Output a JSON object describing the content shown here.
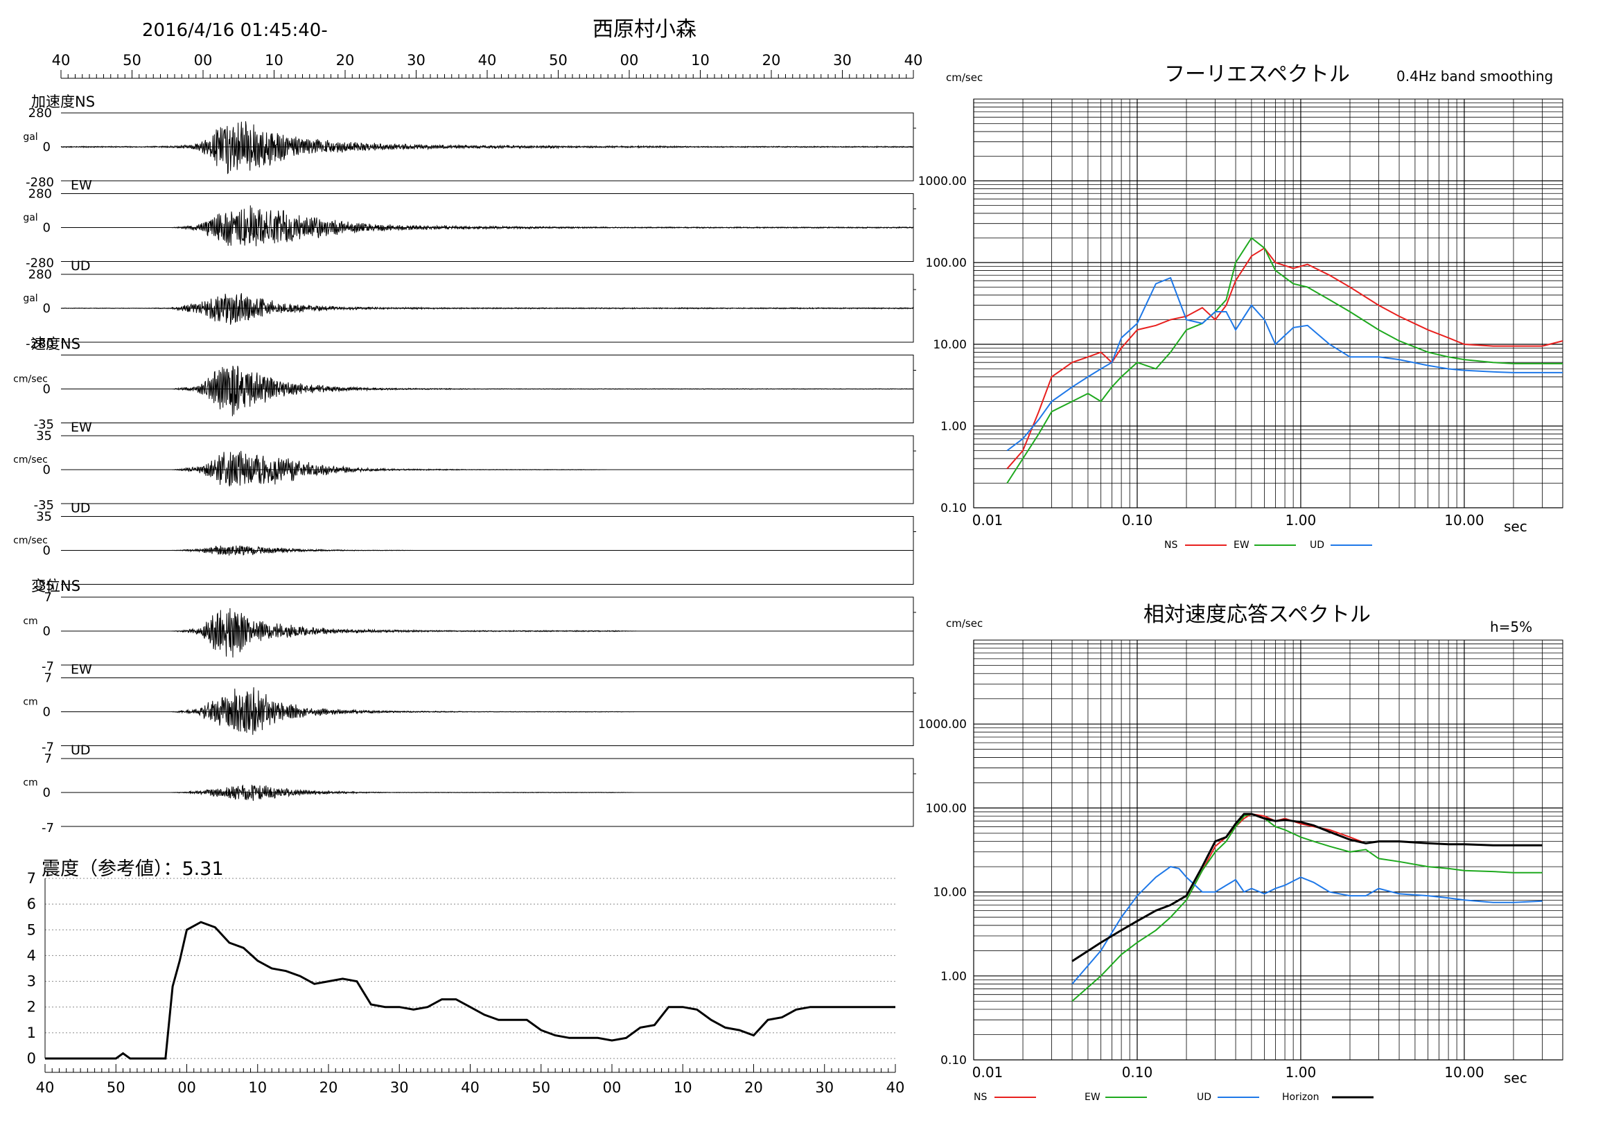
{
  "header": {
    "datetime": "2016/4/16 01:45:40-",
    "station": "西原村小森"
  },
  "waveforms": {
    "time_ticks": [
      "40",
      "50",
      "00",
      "10",
      "20",
      "30",
      "40",
      "50",
      "00",
      "10",
      "20",
      "30",
      "40"
    ],
    "panels": [
      {
        "group_label": "加速度NS",
        "comp": "",
        "unit": "gal",
        "top": "280",
        "mid": "0",
        "bottom": "-280",
        "env": [
          0.02,
          0.02,
          0.02,
          0.02,
          0.03,
          0.1,
          0.9,
          0.8,
          0.5,
          0.3,
          0.2,
          0.15,
          0.1,
          0.08,
          0.06,
          0.05,
          0.05,
          0.04,
          0.04,
          0.03,
          0.03,
          0.03,
          0.03,
          0.02,
          0.02,
          0.02,
          0.02,
          0.02,
          0.02,
          0.02,
          0.02,
          0.02
        ]
      },
      {
        "group_label": "",
        "comp": "EW",
        "unit": "gal",
        "top": "280",
        "mid": "0",
        "bottom": "-280",
        "env": [
          0.0,
          0.0,
          0.0,
          0.0,
          0.0,
          0.1,
          0.6,
          0.75,
          0.6,
          0.4,
          0.25,
          0.15,
          0.1,
          0.08,
          0.06,
          0.05,
          0.04,
          0.04,
          0.03,
          0.03,
          0.02,
          0.02,
          0.02,
          0.02,
          0.02,
          0.02,
          0.02,
          0.02,
          0.02,
          0.02,
          0.02,
          0.02
        ]
      },
      {
        "group_label": "",
        "comp": "UD",
        "unit": "gal",
        "top": "280",
        "mid": "0",
        "bottom": "-280",
        "env": [
          0.01,
          0.01,
          0.01,
          0.01,
          0.02,
          0.2,
          0.6,
          0.4,
          0.2,
          0.1,
          0.06,
          0.04,
          0.03,
          0.03,
          0.02,
          0.02,
          0.02,
          0.02,
          0.02,
          0.02,
          0.02,
          0.02,
          0.02,
          0.02,
          0.02,
          0.02,
          0.02,
          0.02,
          0.02,
          0.02,
          0.02,
          0.02
        ]
      },
      {
        "group_label": "速度NS",
        "comp": "",
        "unit": "cm/sec",
        "top": "",
        "mid": "0",
        "bottom": "-35",
        "env": [
          0.0,
          0.0,
          0.0,
          0.0,
          0.0,
          0.1,
          0.95,
          0.6,
          0.3,
          0.15,
          0.08,
          0.05,
          0.03,
          0.02,
          0.02,
          0.01,
          0.01,
          0.01,
          0.01,
          0.01,
          0.01,
          0.01,
          0.01,
          0.01,
          0.01,
          0.01,
          0.01,
          0.01,
          0.01,
          0.01,
          0.01,
          0.01
        ]
      },
      {
        "group_label": "",
        "comp": "EW",
        "unit": "cm/sec",
        "top": "35",
        "mid": "0",
        "bottom": "-35",
        "env": [
          0.0,
          0.0,
          0.0,
          0.0,
          0.0,
          0.1,
          0.6,
          0.6,
          0.45,
          0.25,
          0.12,
          0.06,
          0.03,
          0.02,
          0.02,
          0.01,
          0.01,
          0.01,
          0.01,
          0.01,
          0.0,
          0.0,
          0.0,
          0.0,
          0.0,
          0.0,
          0.0,
          0.0,
          0.0,
          0.0,
          0.0,
          0.0
        ]
      },
      {
        "group_label": "",
        "comp": "UD",
        "unit": "cm/sec",
        "top": "35",
        "mid": "0",
        "bottom": "-35",
        "env": [
          0.0,
          0.0,
          0.0,
          0.0,
          0.0,
          0.05,
          0.2,
          0.15,
          0.08,
          0.04,
          0.02,
          0.01,
          0.01,
          0.0,
          0.0,
          0.0,
          0.0,
          0.0,
          0.0,
          0.0,
          0.0,
          0.0,
          0.0,
          0.0,
          0.0,
          0.0,
          0.0,
          0.0,
          0.0,
          0.0,
          0.0,
          0.0
        ]
      },
      {
        "group_label": "変位NS",
        "comp": "",
        "unit": "cm",
        "top": "7",
        "mid": "0",
        "bottom": "-7",
        "env": [
          0.0,
          0.0,
          0.0,
          0.0,
          0.0,
          0.1,
          1.0,
          0.4,
          0.25,
          0.15,
          0.08,
          0.05,
          0.04,
          0.03,
          0.02,
          0.02,
          0.02,
          0.02,
          0.02,
          0.02,
          0.02,
          0.0,
          0.0,
          0.0,
          0.0,
          0.0,
          0.0,
          0.0,
          0.0,
          0.0,
          0.0,
          0.0
        ]
      },
      {
        "group_label": "",
        "comp": "EW",
        "unit": "cm",
        "top": "7",
        "mid": "0",
        "bottom": "-7",
        "env": [
          0.0,
          0.0,
          0.0,
          0.0,
          0.0,
          0.1,
          0.7,
          0.8,
          0.35,
          0.15,
          0.08,
          0.05,
          0.03,
          0.02,
          0.02,
          0.01,
          0.01,
          0.01,
          0.01,
          0.01,
          0.01,
          0.0,
          0.0,
          0.0,
          0.0,
          0.0,
          0.0,
          0.0,
          0.0,
          0.0,
          0.0,
          0.0
        ]
      },
      {
        "group_label": "",
        "comp": "UD",
        "unit": "cm",
        "top": "7",
        "mid": "0",
        "bottom": "-7",
        "env": [
          0.0,
          0.0,
          0.0,
          0.0,
          0.0,
          0.05,
          0.2,
          0.3,
          0.15,
          0.08,
          0.04,
          0.02,
          0.01,
          0.01,
          0.01,
          0.01,
          0.01,
          0.01,
          0.01,
          0.01,
          0.01,
          0.0,
          0.0,
          0.0,
          0.0,
          0.0,
          0.0,
          0.0,
          0.0,
          0.0,
          0.0,
          0.0
        ]
      }
    ]
  },
  "intensity": {
    "title": "震度（参考値）：5.31",
    "y_ticks": [
      "0",
      "1",
      "2",
      "3",
      "4",
      "5",
      "6",
      "7"
    ],
    "x_ticks": [
      "40",
      "50",
      "00",
      "10",
      "20",
      "30",
      "40",
      "50",
      "00",
      "10",
      "20",
      "30",
      "40"
    ],
    "chart_data": {
      "type": "line",
      "x_seconds": [
        0,
        10,
        11,
        12,
        17,
        18,
        19,
        20,
        22,
        24,
        26,
        28,
        30,
        32,
        34,
        36,
        38,
        40,
        42,
        44,
        46,
        48,
        50,
        52,
        54,
        56,
        58,
        60,
        62,
        64,
        66,
        68,
        70,
        72,
        74,
        76,
        78,
        80,
        82,
        84,
        86,
        88,
        90,
        92,
        94,
        96,
        98,
        100,
        102,
        104,
        106,
        108,
        110,
        112,
        114,
        116,
        118,
        120
      ],
      "values": [
        0,
        0,
        0.2,
        0,
        0,
        2.8,
        3.8,
        5.0,
        5.3,
        5.1,
        4.5,
        4.3,
        3.8,
        3.5,
        3.4,
        3.2,
        2.9,
        3.0,
        3.1,
        3.0,
        2.1,
        2.0,
        2.0,
        1.9,
        2.0,
        2.3,
        2.3,
        2.0,
        1.7,
        1.5,
        1.5,
        1.5,
        1.1,
        0.9,
        0.8,
        0.8,
        0.8,
        0.7,
        0.8,
        1.2,
        1.3,
        2.0,
        2.0,
        1.9,
        1.5,
        1.2,
        1.1,
        0.9,
        1.5,
        1.6,
        1.9,
        2.0,
        2.0,
        2.0,
        2.0,
        2.0,
        2.0,
        2.0
      ],
      "ylim": [
        0,
        7
      ]
    }
  },
  "fourier": {
    "title": "フーリエスペクトル",
    "note": "0.4Hz band smoothing",
    "y_unit": "cm/sec",
    "x_unit": "sec",
    "y_ticks": [
      "0.10",
      "1.00",
      "10.00",
      "100.00",
      "1000.00"
    ],
    "x_ticks": [
      "0.01",
      "0.10",
      "1.00",
      "10.00"
    ],
    "legend": [
      {
        "name": "NS",
        "color": "#e8201e"
      },
      {
        "name": "EW",
        "color": "#1ea91e"
      },
      {
        "name": "UD",
        "color": "#1e78e8"
      }
    ],
    "chart_data": {
      "type": "line",
      "xlim": [
        0.01,
        40
      ],
      "ylim": [
        0.1,
        10000
      ],
      "x_log": true,
      "y_log": true,
      "series": [
        {
          "name": "NS",
          "x": [
            0.016,
            0.02,
            0.025,
            0.03,
            0.04,
            0.05,
            0.06,
            0.07,
            0.08,
            0.1,
            0.13,
            0.16,
            0.2,
            0.25,
            0.3,
            0.35,
            0.4,
            0.5,
            0.6,
            0.7,
            0.9,
            1.1,
            1.5,
            2,
            3,
            4,
            6,
            8,
            10,
            15,
            20,
            30,
            40
          ],
          "y": [
            0.3,
            0.5,
            1.5,
            4,
            6,
            7,
            8,
            6,
            9,
            15,
            17,
            20,
            22,
            28,
            20,
            30,
            60,
            120,
            150,
            100,
            85,
            95,
            70,
            50,
            30,
            22,
            15,
            12,
            10,
            9.5,
            9.5,
            9.5,
            11
          ]
        },
        {
          "name": "EW",
          "x": [
            0.016,
            0.02,
            0.025,
            0.03,
            0.04,
            0.05,
            0.06,
            0.07,
            0.08,
            0.1,
            0.13,
            0.16,
            0.2,
            0.25,
            0.3,
            0.35,
            0.4,
            0.5,
            0.6,
            0.7,
            0.9,
            1.1,
            1.5,
            2,
            3,
            4,
            6,
            8,
            10,
            15,
            20,
            30,
            40
          ],
          "y": [
            0.2,
            0.4,
            0.8,
            1.5,
            2,
            2.5,
            2,
            3,
            4,
            6,
            5,
            8,
            15,
            18,
            25,
            35,
            100,
            200,
            150,
            80,
            55,
            50,
            35,
            25,
            15,
            11,
            8,
            7,
            6.5,
            6,
            5.8,
            5.8,
            5.8
          ]
        },
        {
          "name": "UD",
          "x": [
            0.016,
            0.02,
            0.025,
            0.03,
            0.04,
            0.05,
            0.06,
            0.07,
            0.08,
            0.1,
            0.13,
            0.16,
            0.2,
            0.25,
            0.3,
            0.35,
            0.4,
            0.5,
            0.6,
            0.7,
            0.9,
            1.1,
            1.5,
            2,
            3,
            4,
            6,
            8,
            10,
            15,
            20,
            30,
            40
          ],
          "y": [
            0.5,
            0.7,
            1.2,
            2,
            3,
            4,
            5,
            6,
            12,
            18,
            55,
            65,
            20,
            18,
            25,
            25,
            15,
            30,
            20,
            10,
            16,
            17,
            10,
            7,
            7,
            6.5,
            5.5,
            5,
            4.8,
            4.6,
            4.5,
            4.5,
            4.5
          ]
        }
      ]
    }
  },
  "response": {
    "title": "相対速度応答スペクトル",
    "note": "h=5%",
    "y_unit": "cm/sec",
    "x_unit": "sec",
    "y_ticks": [
      "0.10",
      "1.00",
      "10.00",
      "100.00",
      "1000.00"
    ],
    "x_ticks": [
      "0.01",
      "0.10",
      "1.00",
      "10.00"
    ],
    "legend": [
      {
        "name": "NS",
        "color": "#e8201e"
      },
      {
        "name": "EW",
        "color": "#1ea91e"
      },
      {
        "name": "UD",
        "color": "#1e78e8"
      },
      {
        "name": "Horizon",
        "color": "#000000"
      }
    ],
    "chart_data": {
      "type": "line",
      "xlim": [
        0.01,
        40
      ],
      "ylim": [
        0.1,
        10000
      ],
      "x_log": true,
      "y_log": true,
      "series": [
        {
          "name": "NS",
          "x": [
            0.2,
            0.25,
            0.3,
            0.35,
            0.4,
            0.45,
            0.5,
            0.6,
            0.7,
            0.8,
            1.0,
            1.2,
            1.5,
            2,
            2.5
          ],
          "y": [
            8,
            18,
            35,
            45,
            60,
            75,
            85,
            80,
            70,
            75,
            65,
            60,
            55,
            45,
            38
          ]
        },
        {
          "name": "EW",
          "x": [
            0.04,
            0.06,
            0.08,
            0.1,
            0.13,
            0.16,
            0.2,
            0.25,
            0.3,
            0.35,
            0.4,
            0.45,
            0.5,
            0.6,
            0.7,
            0.8,
            1.0,
            1.2,
            1.5,
            2,
            2.5,
            3,
            4,
            6,
            8,
            10,
            15,
            20,
            30
          ],
          "y": [
            0.5,
            1.0,
            1.8,
            2.5,
            3.5,
            5,
            8,
            18,
            30,
            40,
            60,
            80,
            85,
            75,
            60,
            55,
            45,
            40,
            35,
            30,
            32,
            25,
            23,
            20,
            19,
            18,
            17.5,
            17,
            17
          ]
        },
        {
          "name": "UD",
          "x": [
            0.04,
            0.06,
            0.08,
            0.1,
            0.13,
            0.16,
            0.18,
            0.2,
            0.25,
            0.3,
            0.35,
            0.4,
            0.45,
            0.5,
            0.6,
            0.7,
            0.8,
            1.0,
            1.2,
            1.5,
            2,
            2.5,
            3,
            4,
            6,
            8,
            10,
            15,
            20,
            30
          ],
          "y": [
            0.8,
            2,
            5,
            9,
            15,
            20,
            19,
            15,
            10,
            10,
            12,
            14,
            10,
            11,
            9.5,
            11,
            12,
            15,
            13,
            10,
            9,
            9,
            11,
            9.5,
            9,
            8.5,
            8,
            7.5,
            7.5,
            7.8
          ]
        },
        {
          "name": "Horizon",
          "x": [
            0.04,
            0.06,
            0.08,
            0.1,
            0.13,
            0.16,
            0.2,
            0.25,
            0.3,
            0.35,
            0.4,
            0.45,
            0.5,
            0.6,
            0.7,
            0.8,
            1.0,
            1.2,
            1.5,
            2,
            2.5,
            3,
            4,
            6,
            8,
            10,
            15,
            20,
            30
          ],
          "y": [
            1.5,
            2.5,
            3.5,
            4.5,
            6,
            7,
            9,
            20,
            40,
            45,
            65,
            85,
            85,
            75,
            70,
            72,
            68,
            62,
            52,
            42,
            38,
            40,
            40,
            38,
            37,
            37,
            36,
            36,
            36
          ]
        }
      ]
    }
  }
}
